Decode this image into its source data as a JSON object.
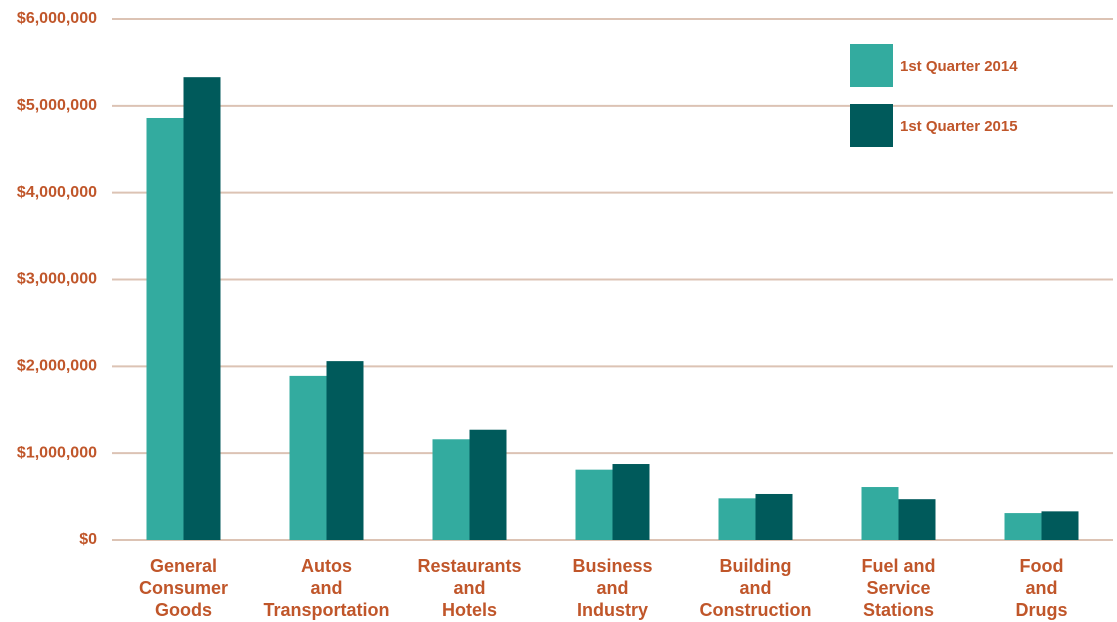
{
  "chart_data": {
    "type": "bar",
    "categories": [
      "General\nConsumer\nGoods",
      "Autos\nand\nTransportation",
      "Restaurants\nand\nHotels",
      "Business\nand\nIndustry",
      "Building\nand\nConstruction",
      "Fuel and\nService\nStations",
      "Food\nand\nDrugs"
    ],
    "series": [
      {
        "name": "1st Quarter 2014",
        "color": "#33ab9f",
        "values": [
          4860000,
          1890000,
          1160000,
          810000,
          480000,
          610000,
          310000
        ]
      },
      {
        "name": "1st Quarter 2015",
        "color": "#005a5b",
        "values": [
          5330000,
          2060000,
          1270000,
          875000,
          530000,
          470000,
          330000
        ]
      }
    ],
    "ylim": [
      0,
      6000000
    ],
    "yticks": [
      {
        "value": 0,
        "label": "$0"
      },
      {
        "value": 1000000,
        "label": "$1,000,000"
      },
      {
        "value": 2000000,
        "label": "$2,000,000"
      },
      {
        "value": 3000000,
        "label": "$3,000,000"
      },
      {
        "value": 4000000,
        "label": "$4,000,000"
      },
      {
        "value": 5000000,
        "label": "$5,000,000"
      },
      {
        "value": 6000000,
        "label": "$6,000,000"
      }
    ],
    "grid": true,
    "legend": "upper right"
  }
}
